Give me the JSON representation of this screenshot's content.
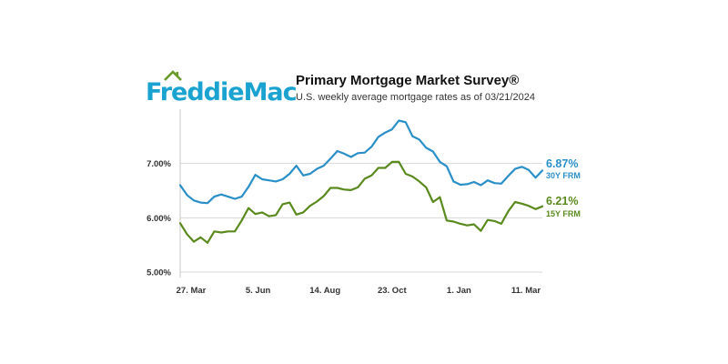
{
  "logo": {
    "text": "FreddieMac",
    "color": "#1aa3d1",
    "roof_color": "#6a9a2a",
    "icon": "house-roof-icon"
  },
  "header": {
    "title": "Primary Mortgage Market Survey®",
    "subtitle": "U.S. weekly average mortgage rates as of 03/21/2024"
  },
  "chart_data": {
    "type": "line",
    "x_tick_labels": [
      "27. Mar",
      "5. Jun",
      "14. Aug",
      "23. Oct",
      "1. Jan",
      "11. Mar"
    ],
    "y_tick_labels": [
      "7.00%",
      "6.00%",
      "5.00%"
    ],
    "y_ticks": [
      7.0,
      6.0,
      5.0
    ],
    "ylim": [
      4.9,
      8.0
    ],
    "grid": true,
    "series": [
      {
        "name": "30Y FRM",
        "end_label": "6.87%",
        "color": "#2a8fc8",
        "values": [
          6.6,
          6.42,
          6.32,
          6.28,
          6.27,
          6.39,
          6.43,
          6.39,
          6.35,
          6.39,
          6.57,
          6.79,
          6.71,
          6.69,
          6.67,
          6.71,
          6.81,
          6.96,
          6.78,
          6.81,
          6.9,
          6.96,
          7.09,
          7.23,
          7.18,
          7.12,
          7.19,
          7.2,
          7.31,
          7.49,
          7.57,
          7.63,
          7.79,
          7.76,
          7.5,
          7.44,
          7.29,
          7.22,
          7.03,
          6.95,
          6.67,
          6.61,
          6.62,
          6.66,
          6.6,
          6.69,
          6.64,
          6.63,
          6.77,
          6.9,
          6.94,
          6.88,
          6.74,
          6.87
        ]
      },
      {
        "name": "15Y FRM",
        "end_label": "6.21%",
        "color": "#5a8a1e",
        "values": [
          5.9,
          5.7,
          5.56,
          5.64,
          5.54,
          5.75,
          5.73,
          5.75,
          5.75,
          5.95,
          6.18,
          6.07,
          6.1,
          6.03,
          6.05,
          6.25,
          6.28,
          6.06,
          6.1,
          6.22,
          6.3,
          6.4,
          6.55,
          6.55,
          6.52,
          6.51,
          6.56,
          6.72,
          6.78,
          6.92,
          6.92,
          7.03,
          7.03,
          6.81,
          6.76,
          6.67,
          6.56,
          6.29,
          6.38,
          5.95,
          5.93,
          5.89,
          5.86,
          5.88,
          5.76,
          5.96,
          5.94,
          5.89,
          6.12,
          6.29,
          6.26,
          6.22,
          6.16,
          6.21
        ]
      }
    ]
  }
}
